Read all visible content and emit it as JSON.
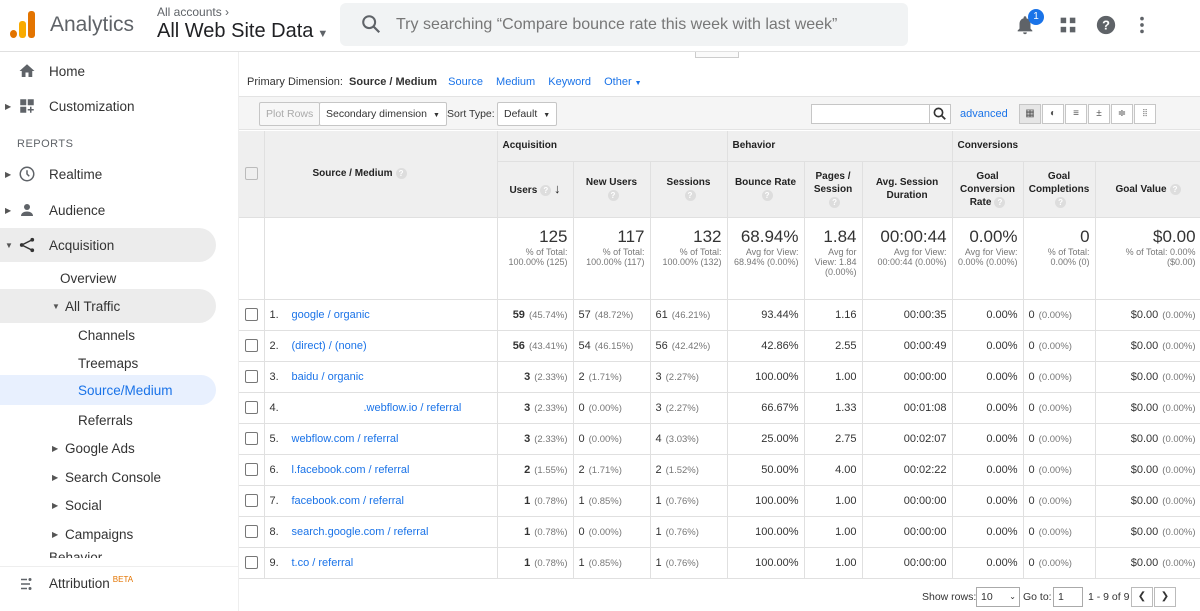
{
  "header": {
    "app_title": "Analytics",
    "accounts_label": "All accounts",
    "property": "All Web Site Data",
    "search_placeholder": "Try searching “Compare bounce rate this week with last week”",
    "notification_count": "1"
  },
  "sidebar": {
    "home": "Home",
    "customization": "Customization",
    "reports_label": "REPORTS",
    "realtime": "Realtime",
    "audience": "Audience",
    "acquisition": "Acquisition",
    "overview": "Overview",
    "all_traffic": "All Traffic",
    "channels": "Channels",
    "treemaps": "Treemaps",
    "source_medium": "Source/Medium",
    "referrals": "Referrals",
    "google_ads": "Google Ads",
    "search_console": "Search Console",
    "social": "Social",
    "campaigns": "Campaigns",
    "behavior": "Behavior",
    "attribution": "Attribution",
    "beta": "BETA"
  },
  "controls": {
    "primary_label": "Primary Dimension:",
    "primary_active": "Source / Medium",
    "dim_source": "Source",
    "dim_medium": "Medium",
    "dim_keyword": "Keyword",
    "dim_other": "Other",
    "plot_rows": "Plot Rows",
    "secondary_dimension": "Secondary dimension",
    "sort_type_label": "Sort Type:",
    "sort_type_value": "Default",
    "advanced": "advanced"
  },
  "table": {
    "groups": {
      "acquisition": "Acquisition",
      "behavior": "Behavior",
      "conversions": "Conversions"
    },
    "columns": {
      "source_medium": "Source / Medium",
      "users": "Users",
      "new_users": "New Users",
      "sessions": "Sessions",
      "bounce_rate": "Bounce Rate",
      "pages_session": "Pages / Session",
      "avg_session": "Avg. Session Duration",
      "goal_conv": "Goal Conversion Rate",
      "goal_comp": "Goal Completions",
      "goal_value": "Goal Value"
    },
    "totals": {
      "users": "125",
      "users_sub": "% of Total: 100.00% (125)",
      "new_users": "117",
      "new_users_sub": "% of Total: 100.00% (117)",
      "sessions": "132",
      "sessions_sub": "% of Total: 100.00% (132)",
      "bounce": "68.94%",
      "bounce_sub": "Avg for View: 68.94% (0.00%)",
      "pages": "1.84",
      "pages_sub": "Avg for View: 1.84 (0.00%)",
      "duration": "00:00:44",
      "duration_sub": "Avg for View: 00:00:44 (0.00%)",
      "conv": "0.00%",
      "conv_sub": "Avg for View: 0.00% (0.00%)",
      "comp": "0",
      "comp_sub": "% of Total: 0.00% (0)",
      "value": "$0.00",
      "value_sub": "% of Total: 0.00% ($0.00)"
    },
    "rows": [
      {
        "idx": "1.",
        "src": "google / organic",
        "users": "59",
        "users_p": "(45.74%)",
        "new": "57",
        "new_p": "(48.72%)",
        "sess": "61",
        "sess_p": "(46.21%)",
        "bounce": "93.44%",
        "pages": "1.16",
        "dur": "00:00:35",
        "conv": "0.00%",
        "comp": "0",
        "comp_p": "(0.00%)",
        "val": "$0.00",
        "val_p": "(0.00%)"
      },
      {
        "idx": "2.",
        "src": "(direct) / (none)",
        "users": "56",
        "users_p": "(43.41%)",
        "new": "54",
        "new_p": "(46.15%)",
        "sess": "56",
        "sess_p": "(42.42%)",
        "bounce": "42.86%",
        "pages": "2.55",
        "dur": "00:00:49",
        "conv": "0.00%",
        "comp": "0",
        "comp_p": "(0.00%)",
        "val": "$0.00",
        "val_p": "(0.00%)"
      },
      {
        "idx": "3.",
        "src": "baidu / organic",
        "users": "3",
        "users_p": "(2.33%)",
        "new": "2",
        "new_p": "(1.71%)",
        "sess": "3",
        "sess_p": "(2.27%)",
        "bounce": "100.00%",
        "pages": "1.00",
        "dur": "00:00:00",
        "conv": "0.00%",
        "comp": "0",
        "comp_p": "(0.00%)",
        "val": "$0.00",
        "val_p": "(0.00%)"
      },
      {
        "idx": "4.",
        "src": ".webflow.io / referral",
        "users": "3",
        "users_p": "(2.33%)",
        "new": "0",
        "new_p": "(0.00%)",
        "sess": "3",
        "sess_p": "(2.27%)",
        "bounce": "66.67%",
        "pages": "1.33",
        "dur": "00:01:08",
        "conv": "0.00%",
        "comp": "0",
        "comp_p": "(0.00%)",
        "val": "$0.00",
        "val_p": "(0.00%)"
      },
      {
        "idx": "5.",
        "src": "webflow.com / referral",
        "users": "3",
        "users_p": "(2.33%)",
        "new": "0",
        "new_p": "(0.00%)",
        "sess": "4",
        "sess_p": "(3.03%)",
        "bounce": "25.00%",
        "pages": "2.75",
        "dur": "00:02:07",
        "conv": "0.00%",
        "comp": "0",
        "comp_p": "(0.00%)",
        "val": "$0.00",
        "val_p": "(0.00%)"
      },
      {
        "idx": "6.",
        "src": "l.facebook.com / referral",
        "users": "2",
        "users_p": "(1.55%)",
        "new": "2",
        "new_p": "(1.71%)",
        "sess": "2",
        "sess_p": "(1.52%)",
        "bounce": "50.00%",
        "pages": "4.00",
        "dur": "00:02:22",
        "conv": "0.00%",
        "comp": "0",
        "comp_p": "(0.00%)",
        "val": "$0.00",
        "val_p": "(0.00%)"
      },
      {
        "idx": "7.",
        "src": "facebook.com / referral",
        "users": "1",
        "users_p": "(0.78%)",
        "new": "1",
        "new_p": "(0.85%)",
        "sess": "1",
        "sess_p": "(0.76%)",
        "bounce": "100.00%",
        "pages": "1.00",
        "dur": "00:00:00",
        "conv": "0.00%",
        "comp": "0",
        "comp_p": "(0.00%)",
        "val": "$0.00",
        "val_p": "(0.00%)"
      },
      {
        "idx": "8.",
        "src": "search.google.com / referral",
        "users": "1",
        "users_p": "(0.78%)",
        "new": "0",
        "new_p": "(0.00%)",
        "sess": "1",
        "sess_p": "(0.76%)",
        "bounce": "100.00%",
        "pages": "1.00",
        "dur": "00:00:00",
        "conv": "0.00%",
        "comp": "0",
        "comp_p": "(0.00%)",
        "val": "$0.00",
        "val_p": "(0.00%)"
      },
      {
        "idx": "9.",
        "src": "t.co / referral",
        "users": "1",
        "users_p": "(0.78%)",
        "new": "1",
        "new_p": "(0.85%)",
        "sess": "1",
        "sess_p": "(0.76%)",
        "bounce": "100.00%",
        "pages": "1.00",
        "dur": "00:00:00",
        "conv": "0.00%",
        "comp": "0",
        "comp_p": "(0.00%)",
        "val": "$0.00",
        "val_p": "(0.00%)"
      }
    ]
  },
  "footer": {
    "show_rows_label": "Show rows:",
    "show_rows_value": "10",
    "goto_label": "Go to:",
    "goto_value": "1",
    "range": "1 - 9 of 9"
  },
  "colors": {
    "accent": "#1a73e8",
    "logo_orange": "#f9ab00",
    "logo_dark": "#e37400"
  }
}
